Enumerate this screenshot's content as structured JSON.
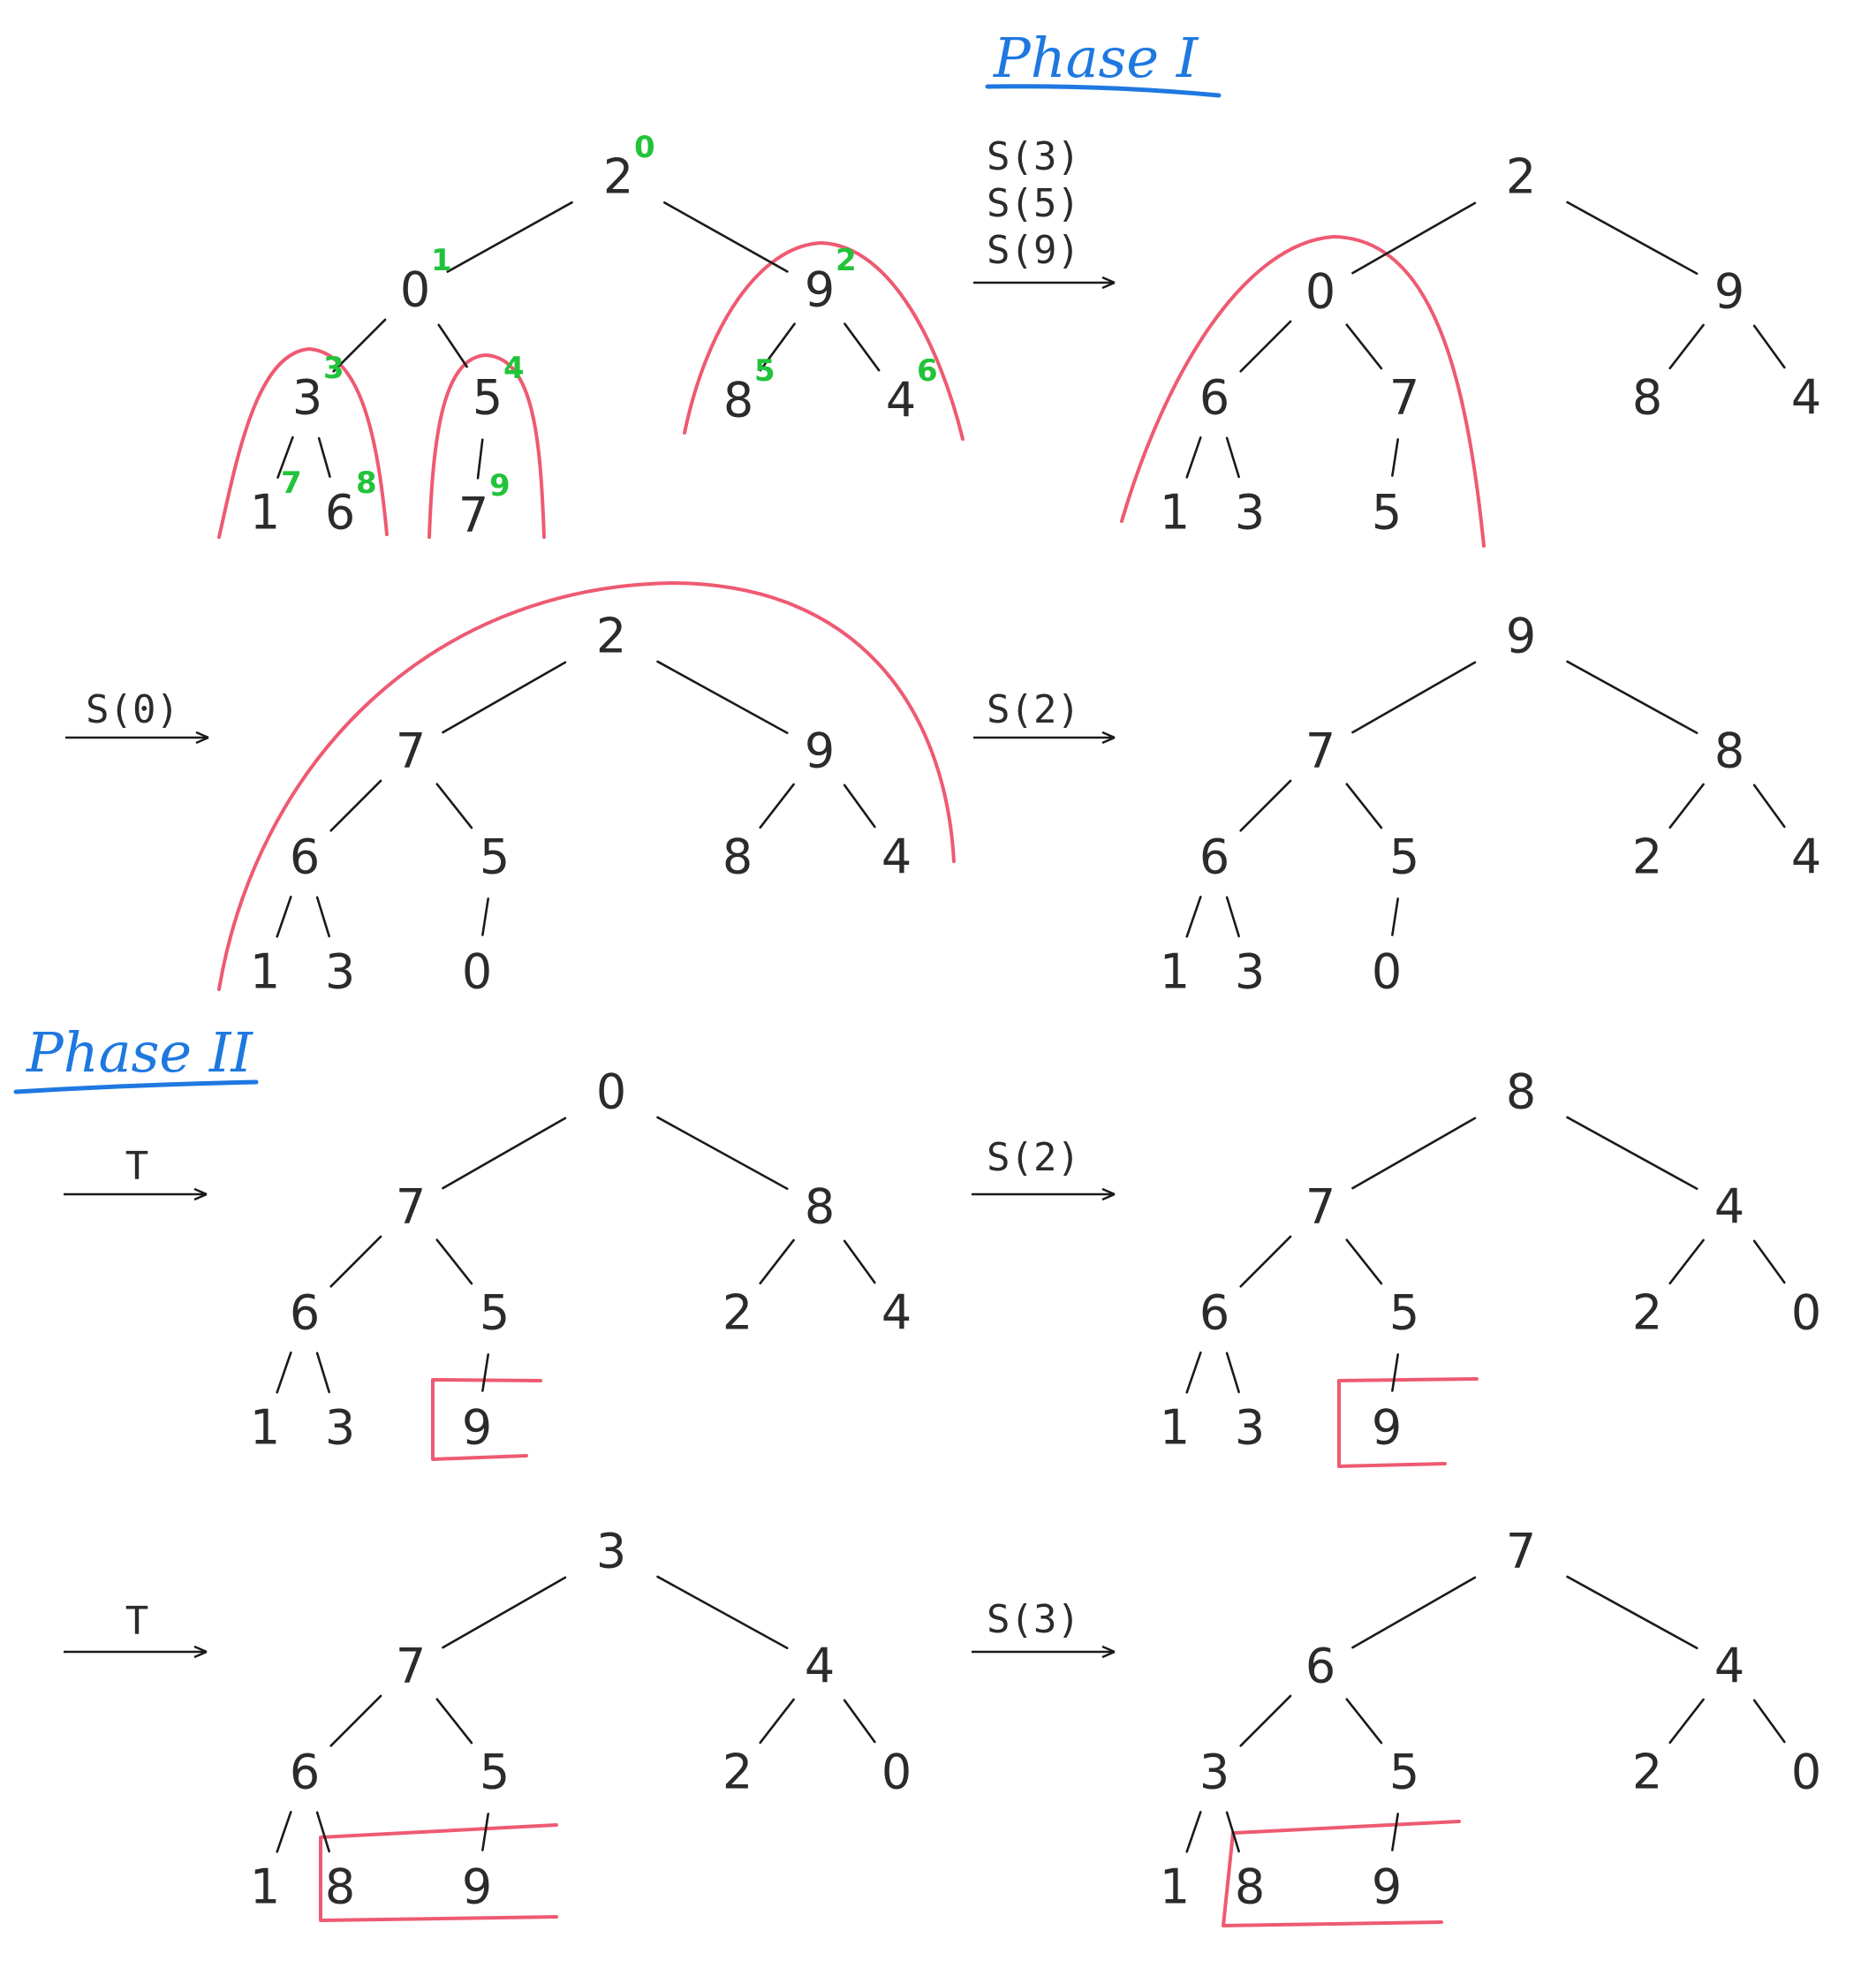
{
  "phases": {
    "phase1": "Phase I",
    "phase2": "Phase II"
  },
  "operations": {
    "op1": [
      "S(3)",
      "S(5)",
      "S(9)"
    ],
    "op2": [
      "S(0)"
    ],
    "op3": [
      "S(2)"
    ],
    "op4": [
      "T"
    ],
    "op5": [
      "S(2)"
    ],
    "op6": [
      "T"
    ],
    "op7": [
      "S(3)"
    ]
  },
  "trees": [
    {
      "id": "t1",
      "labels": [
        "2",
        "0",
        "9",
        "3",
        "5",
        "8",
        "4",
        "1",
        "6",
        "7"
      ],
      "indices": [
        "0",
        "1",
        "2",
        "3",
        "4",
        "5",
        "6",
        "7",
        "8",
        "9"
      ]
    },
    {
      "id": "t2",
      "labels": [
        "2",
        "0",
        "9",
        "6",
        "7",
        "8",
        "4",
        "1",
        "3",
        "5"
      ]
    },
    {
      "id": "t3",
      "labels": [
        "2",
        "7",
        "9",
        "6",
        "5",
        "8",
        "4",
        "1",
        "3",
        "0"
      ]
    },
    {
      "id": "t4",
      "labels": [
        "9",
        "7",
        "8",
        "6",
        "5",
        "2",
        "4",
        "1",
        "3",
        "0"
      ]
    },
    {
      "id": "t5",
      "labels": [
        "0",
        "7",
        "8",
        "6",
        "5",
        "2",
        "4",
        "1",
        "3",
        "9"
      ]
    },
    {
      "id": "t6",
      "labels": [
        "8",
        "7",
        "4",
        "6",
        "5",
        "2",
        "0",
        "1",
        "3",
        "9"
      ]
    },
    {
      "id": "t7",
      "labels": [
        "3",
        "7",
        "4",
        "6",
        "5",
        "2",
        "0",
        "1",
        "8",
        "9"
      ]
    },
    {
      "id": "t8",
      "labels": [
        "7",
        "6",
        "4",
        "3",
        "5",
        "2",
        "0",
        "1",
        "8",
        "9"
      ]
    }
  ],
  "colors": {
    "ink": "#2b2b2b",
    "index": "#22c33a",
    "marker": "#ee5a72",
    "phase": "#1e78e0"
  }
}
